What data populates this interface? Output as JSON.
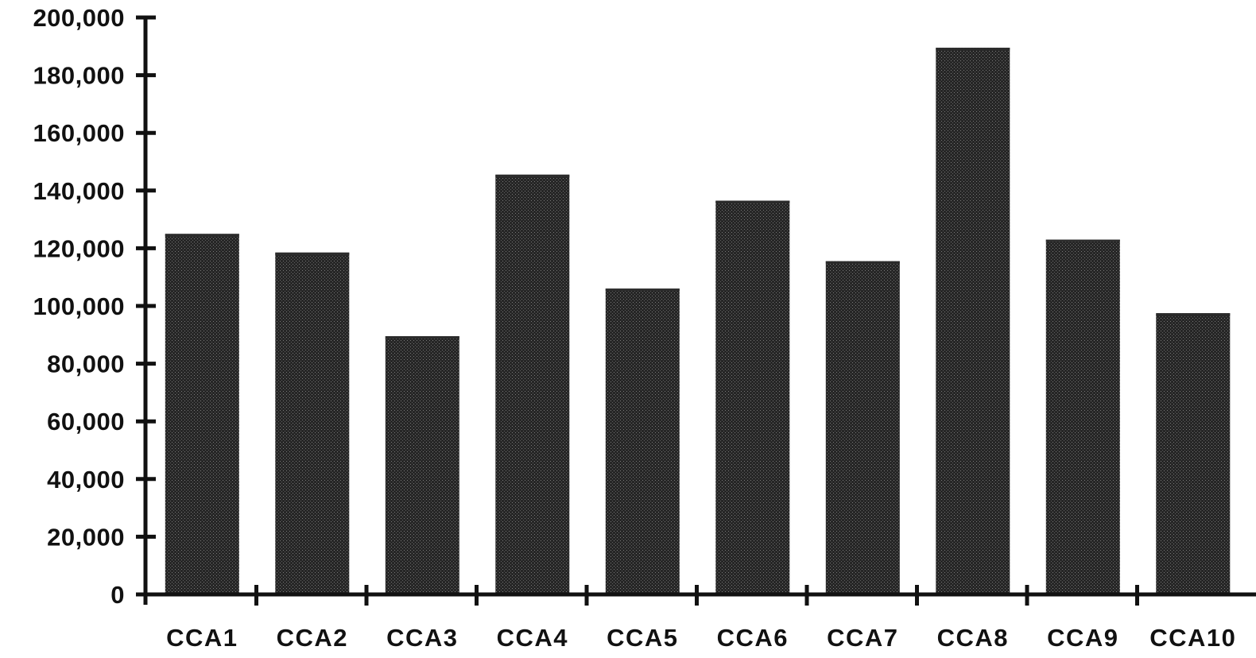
{
  "chart_data": {
    "type": "bar",
    "categories": [
      "CCA1",
      "CCA2",
      "CCA3",
      "CCA4",
      "CCA5",
      "CCA6",
      "CCA7",
      "CCA8",
      "CCA9",
      "CCA10"
    ],
    "values": [
      125000,
      118500,
      89500,
      145500,
      106000,
      136500,
      115500,
      189500,
      123000,
      97500
    ],
    "ylim": [
      0,
      200000
    ],
    "yticks": [
      0,
      20000,
      40000,
      60000,
      80000,
      100000,
      120000,
      140000,
      160000,
      180000,
      200000
    ],
    "ytick_labels": [
      "0",
      "20,000",
      "40,000",
      "60,000",
      "80,000",
      "100,000",
      "120,000",
      "140,000",
      "160,000",
      "180,000",
      "200,000"
    ],
    "title": "",
    "xlabel": "",
    "ylabel": "",
    "grid": false,
    "legend": "none",
    "colors": {
      "bar_fill": "#2b2b2b",
      "axis": "#111111",
      "background": "#ffffff"
    }
  }
}
